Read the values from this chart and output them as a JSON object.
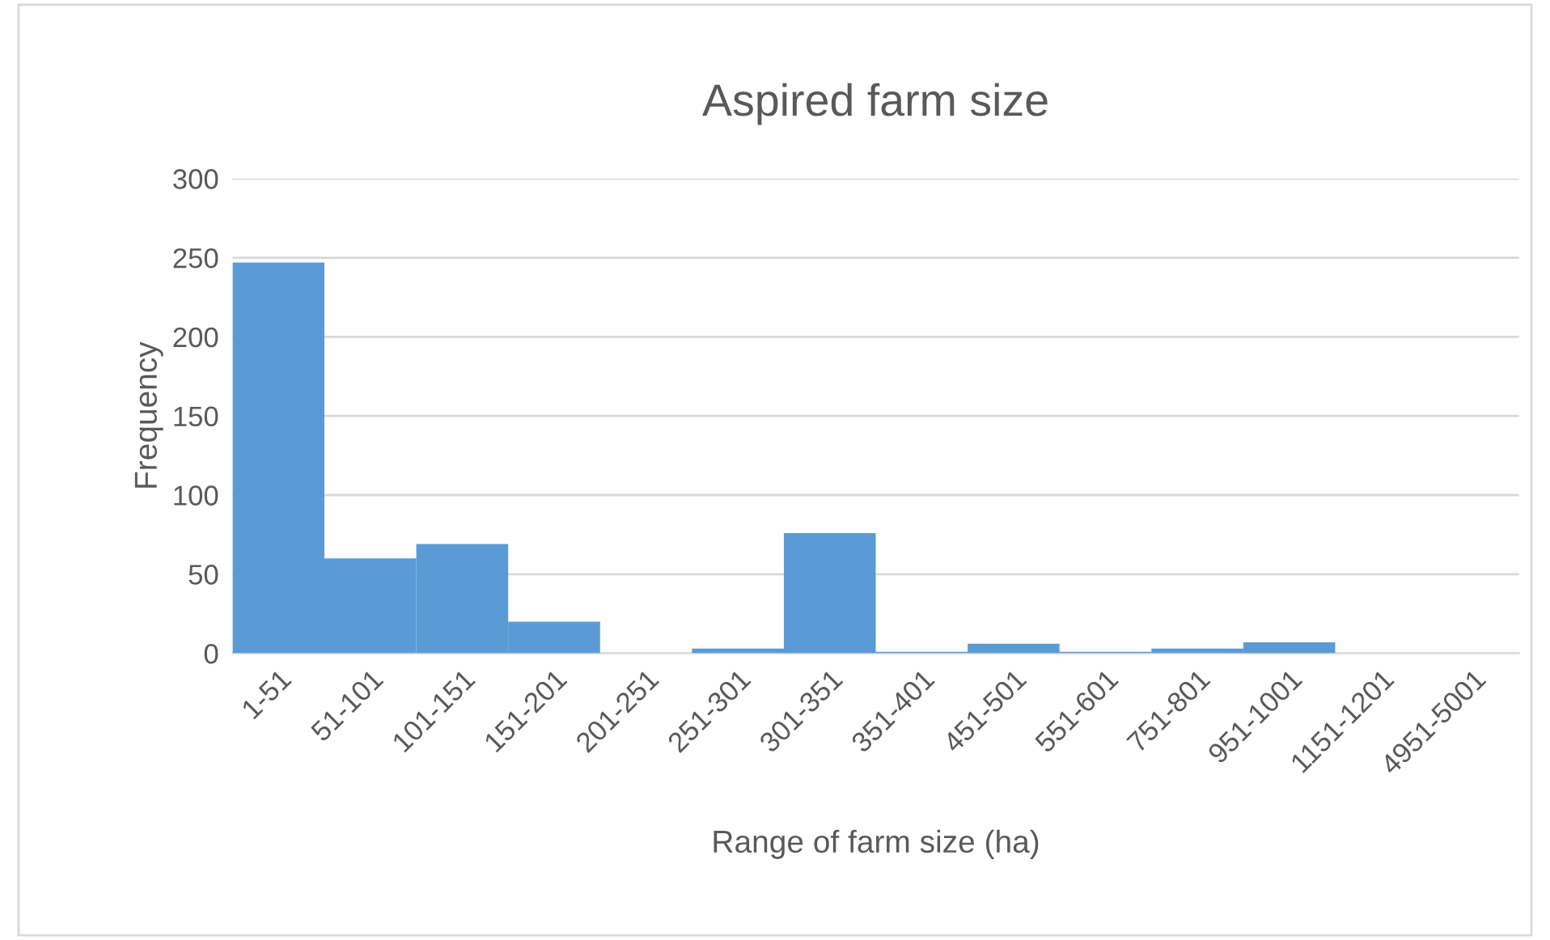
{
  "chart_data": {
    "type": "bar",
    "title": "Aspired farm size",
    "xlabel": "Range of farm size (ha)",
    "ylabel": "Frequency",
    "categories": [
      "1-51",
      "51-101",
      "101-151",
      "151-201",
      "201-251",
      "251-301",
      "301-351",
      "351-401",
      "451-501",
      "551-601",
      "751-801",
      "951-1001",
      "1151-1201",
      "4951-5001"
    ],
    "values": [
      247,
      60,
      69,
      20,
      0,
      3,
      76,
      1,
      6,
      1,
      3,
      7,
      0,
      0
    ],
    "color": "#5b9bd5",
    "ylim": [
      0,
      300
    ],
    "yticks": [
      0,
      50,
      100,
      150,
      200,
      250,
      300
    ],
    "grid": "y",
    "legend": false
  }
}
